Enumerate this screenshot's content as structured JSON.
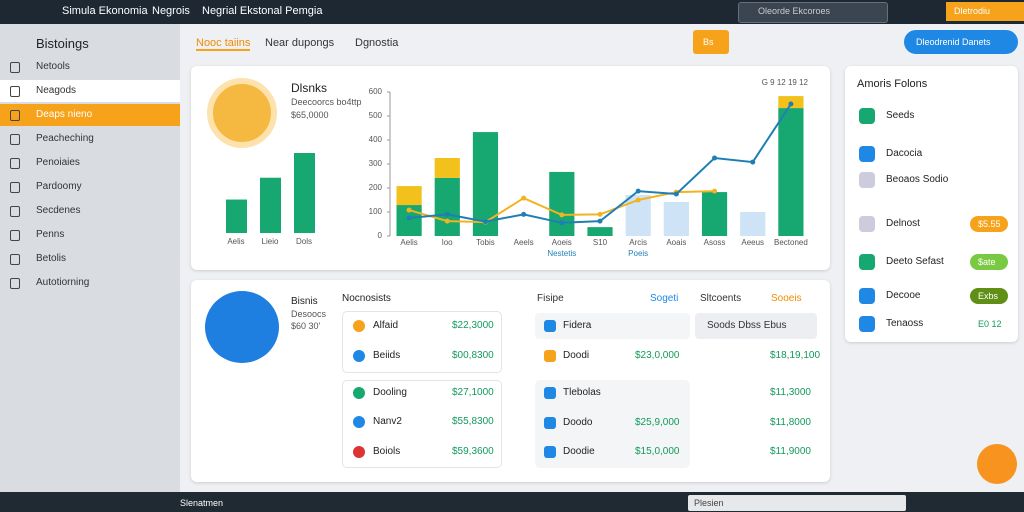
{
  "topbar": {
    "app": "Simula Ekonomia",
    "menu": [
      "Negrois",
      "Negrial Ekstonal Pemgia"
    ],
    "search": "Oleorde Ekcoroes",
    "button": "Dletrodiu"
  },
  "sidebar": {
    "title": "Bistoings",
    "active": 2,
    "items": [
      "Netools",
      "Neagods",
      "Deaps nieno",
      "Peacheching",
      "Penoiaies",
      "Pardoomy",
      "Secdenes",
      "Penns",
      "Betolis",
      "Autotiorning"
    ]
  },
  "tabs": {
    "active": 0,
    "items": [
      "Nooc taiins",
      "Near dupongs",
      "Dgnostia"
    ]
  },
  "toolbar": {
    "button": "Bs",
    "action": "Dleodrenid Danets"
  },
  "summary": {
    "title": "Dlsnks",
    "subtitle": "Deecoorcs bo4ttp",
    "amount": "$65,0000",
    "values": [
      23,
      38,
      55
    ],
    "labels": [
      "Aelis",
      "Lieio",
      "Dols"
    ]
  },
  "chart_data": {
    "type": "bar",
    "subtitle": "G 9 12 19 12",
    "categories": [
      "Aelis",
      "loo",
      "Tobis",
      "Aeels",
      "Aoeis",
      "S10",
      "Arcis",
      "Aoais",
      "Asoss",
      "Aeeus",
      "Bectoned"
    ],
    "annotations": [
      {
        "category": 4,
        "text": "Nestetis"
      },
      {
        "category": 6,
        "text": "Poeis"
      }
    ],
    "ylim": [
      0,
      600
    ],
    "yticks": [
      0,
      100,
      200,
      300,
      400,
      500,
      600
    ],
    "series": [
      {
        "type": "bar",
        "color": "#16a870",
        "values": [
          129,
          242,
          433,
          null,
          267,
          37,
          null,
          null,
          183,
          null,
          533
        ]
      },
      {
        "type": "bar",
        "stack": 0,
        "color": "#f2c11c",
        "values": [
          79,
          83,
          null,
          null,
          null,
          null,
          null,
          null,
          null,
          null,
          50
        ]
      },
      {
        "type": "bar",
        "color": "#cfe3f7",
        "values": [
          null,
          null,
          null,
          null,
          null,
          null,
          171,
          142,
          null,
          100,
          null
        ]
      },
      {
        "type": "line",
        "color": "#f2b320",
        "values": [
          108,
          62,
          58,
          158,
          88,
          90,
          150,
          183,
          187,
          null,
          null
        ]
      },
      {
        "type": "line",
        "color": "#1f7fb5",
        "values": [
          75,
          90,
          60,
          90,
          55,
          62,
          187,
          175,
          325,
          308,
          550
        ]
      }
    ]
  },
  "accounts": {
    "title": "Bisnis",
    "subtitle": "Desoocs",
    "amount": "$60 30'",
    "list_title": "Nocnosists",
    "left": [
      {
        "name": "Alfaid",
        "amount": "$22,3000"
      },
      {
        "name": "Beiids",
        "amount": "$00,8300"
      },
      {
        "name": "Dooling",
        "amount": "$27,1000"
      },
      {
        "name": "Nanv2",
        "amount": "$55,8300"
      },
      {
        "name": "Boiols",
        "amount": "$59,3600"
      }
    ],
    "headers": [
      "Fisipe",
      "Sogeti",
      "Sltcoents",
      "Sooeis"
    ],
    "right": [
      {
        "name": "Fidera",
        "amount": "",
        "total": "Soods Dbss Ebus"
      },
      {
        "name": "Doodi",
        "amount": "$23,0,000",
        "total": "$18,19,100"
      },
      {
        "name": "Tlebolas",
        "amount": "",
        "total": "$11,3000"
      },
      {
        "name": "Doodo",
        "amount": "$25,9,000",
        "total": "$11,8000"
      },
      {
        "name": "Doodie",
        "amount": "$15,0,000",
        "total": "$11,9000"
      }
    ]
  },
  "panel": {
    "title": "Amoris Folons",
    "rows": [
      {
        "label": "Seeds"
      },
      {
        "label": "Dacocia"
      },
      {
        "label": "Beoaos Sodio"
      },
      {
        "label": "Delnost",
        "badge": "$5.55"
      },
      {
        "label": "Deeto Sefast",
        "badge": "$ate"
      },
      {
        "label": "Decooe",
        "badge": "Exbs"
      },
      {
        "label": "Tenaoss",
        "badge": "E0 12"
      }
    ]
  },
  "taskbar": {
    "app": "Slenatmen",
    "search": "Plesien"
  }
}
